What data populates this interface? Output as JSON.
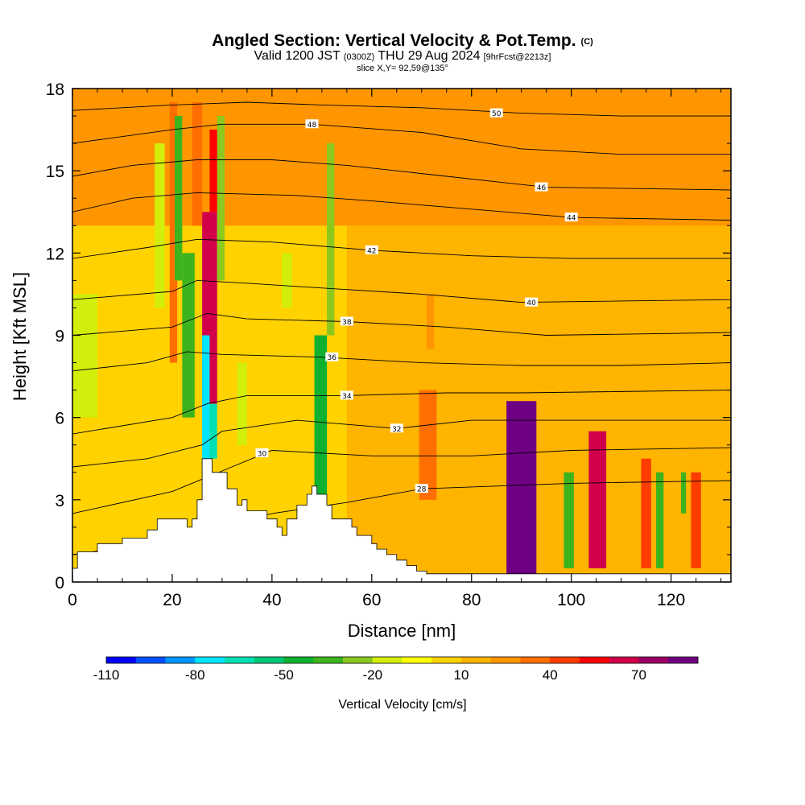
{
  "title": {
    "main": "Angled Section: Vertical Velocity & Pot.Temp.",
    "unit_tag": "(C)",
    "valid_a": "Valid 1200 JST",
    "valid_utc": "(0300Z)",
    "valid_b": "THU 29 Aug 2024",
    "forecast": "[9hrFcst@2213z]",
    "slice": "slice X,Y= 92,59@135°"
  },
  "chart_data": {
    "type": "heatmap",
    "xlabel": "Distance [nm]",
    "ylabel": "Height [Kft MSL]",
    "xlim": [
      0,
      132
    ],
    "ylim": [
      0,
      18
    ],
    "x_ticks": [
      0,
      20,
      40,
      60,
      80,
      100,
      120
    ],
    "y_ticks": [
      0,
      3,
      6,
      9,
      12,
      15,
      18
    ],
    "field": "Vertical Velocity",
    "colorbar": {
      "label": "Vertical Velocity [cm/s]",
      "tick_labels": [
        -110,
        -80,
        -50,
        -20,
        10,
        40,
        70
      ],
      "min": -110,
      "max": 90,
      "step": 10,
      "colors": [
        "#0000ff",
        "#0050ff",
        "#0095ff",
        "#00e5ff",
        "#00e0b4",
        "#00c878",
        "#10b030",
        "#3db41e",
        "#8cc81e",
        "#d2ee0a",
        "#ffff00",
        "#ffd200",
        "#ffb400",
        "#ff9600",
        "#ff6e00",
        "#ff3c00",
        "#ff0000",
        "#d2004b",
        "#9b0064",
        "#6e0082"
      ]
    },
    "background_value": 5,
    "cells": [
      {
        "x0": 87,
        "x1": 93,
        "y0": 0.3,
        "y1": 6.6,
        "v": 80
      },
      {
        "x0": 103.5,
        "x1": 107,
        "y0": 0.5,
        "y1": 5.5,
        "v": 60
      },
      {
        "x0": 26,
        "x1": 29,
        "y0": 6.5,
        "y1": 13.5,
        "v": 60
      },
      {
        "x0": 27.5,
        "x1": 29,
        "y0": 13.5,
        "y1": 16.5,
        "v": 50
      },
      {
        "x0": 24,
        "x1": 26,
        "y0": 13,
        "y1": 17.5,
        "v": 30
      },
      {
        "x0": 69.5,
        "x1": 73,
        "y0": 3,
        "y1": 7,
        "v": 30
      },
      {
        "x0": 71,
        "x1": 72.5,
        "y0": 8.5,
        "y1": 10.5,
        "v": 20
      },
      {
        "x0": 124,
        "x1": 126,
        "y0": 0.5,
        "y1": 4,
        "v": 40
      },
      {
        "x0": 114,
        "x1": 116,
        "y0": 0.5,
        "y1": 4.5,
        "v": 40
      },
      {
        "x0": 19.5,
        "x1": 21,
        "y0": 8,
        "y1": 17.5,
        "v": 30
      },
      {
        "x0": 22,
        "x1": 24.5,
        "y0": 6,
        "y1": 12,
        "v": -40
      },
      {
        "x0": 20.5,
        "x1": 22,
        "y0": 11,
        "y1": 17,
        "v": -40
      },
      {
        "x0": 16.5,
        "x1": 18.5,
        "y0": 10,
        "y1": 16,
        "v": -20
      },
      {
        "x0": 26,
        "x1": 27.5,
        "y0": 4,
        "y1": 9,
        "v": -80
      },
      {
        "x0": 27.5,
        "x1": 29,
        "y0": 4.5,
        "y1": 6.5,
        "v": -70
      },
      {
        "x0": 29,
        "x1": 30.5,
        "y0": 11,
        "y1": 17,
        "v": -30
      },
      {
        "x0": 48.5,
        "x1": 51,
        "y0": 3,
        "y1": 9,
        "v": -50
      },
      {
        "x0": 51,
        "x1": 52.5,
        "y0": 9,
        "y1": 16,
        "v": -30
      },
      {
        "x0": 0,
        "x1": 5,
        "y0": 6,
        "y1": 10.5,
        "v": -20
      },
      {
        "x0": 33,
        "x1": 35,
        "y0": 5,
        "y1": 8,
        "v": -20
      },
      {
        "x0": 42,
        "x1": 44,
        "y0": 10,
        "y1": 12,
        "v": -20
      },
      {
        "x0": 98.5,
        "x1": 100.5,
        "y0": 0.5,
        "y1": 4,
        "v": -40
      },
      {
        "x0": 117,
        "x1": 118.5,
        "y0": 0.5,
        "y1": 4,
        "v": -40
      },
      {
        "x0": 122,
        "x1": 123,
        "y0": 2.5,
        "y1": 4,
        "v": -40
      },
      {
        "x0": 0,
        "x1": 132,
        "y0": 13,
        "y1": 18,
        "v": 20
      },
      {
        "x0": 55,
        "x1": 132,
        "y0": 0.3,
        "y1": 13,
        "v": 15
      }
    ],
    "terrain": {
      "x": [
        0,
        1,
        1,
        5,
        5,
        10,
        10,
        15,
        15,
        17,
        17,
        23,
        23,
        24,
        24,
        25,
        25,
        26,
        26,
        28,
        28,
        31,
        31,
        33,
        33,
        34,
        34,
        35,
        35,
        39,
        39,
        41,
        41,
        42,
        42,
        43,
        43,
        45,
        45,
        47,
        47,
        48,
        48,
        49,
        49,
        51,
        51,
        52,
        52,
        56,
        56,
        57,
        57,
        60,
        60,
        61,
        61,
        63,
        63,
        65,
        65,
        67,
        67,
        69,
        69,
        71,
        71,
        132
      ],
      "y": [
        0.5,
        0.5,
        1.1,
        1.1,
        1.4,
        1.4,
        1.6,
        1.6,
        1.9,
        1.9,
        2.3,
        2.3,
        2.0,
        2.0,
        2.3,
        2.3,
        3.0,
        3.0,
        4.5,
        4.5,
        4.0,
        4.0,
        3.4,
        3.4,
        2.8,
        2.8,
        3.0,
        3.0,
        2.6,
        2.6,
        2.3,
        2.3,
        2.0,
        2.0,
        1.7,
        1.7,
        2.3,
        2.3,
        2.8,
        2.8,
        3.2,
        3.2,
        3.5,
        3.5,
        3.2,
        3.2,
        2.8,
        2.8,
        2.3,
        2.3,
        2.0,
        2.0,
        1.7,
        1.7,
        1.4,
        1.4,
        1.2,
        1.2,
        1.0,
        1.0,
        0.8,
        0.8,
        0.6,
        0.6,
        0.4,
        0.4,
        0.3,
        0.3
      ]
    },
    "contours": [
      {
        "label": "28",
        "pts": [
          [
            0,
            1.0
          ],
          [
            20,
            1.5
          ],
          [
            40,
            2.5
          ],
          [
            55,
            2.9
          ],
          [
            70,
            3.4
          ],
          [
            85,
            3.5
          ],
          [
            100,
            3.6
          ],
          [
            132,
            3.7
          ]
        ],
        "lx": 70,
        "ly": 3.4
      },
      {
        "label": "30",
        "pts": [
          [
            0,
            2.5
          ],
          [
            20,
            3.3
          ],
          [
            40,
            4.8
          ],
          [
            60,
            4.6
          ],
          [
            80,
            4.6
          ],
          [
            100,
            4.8
          ],
          [
            132,
            4.9
          ]
        ],
        "lx": 38,
        "ly": 4.7
      },
      {
        "label": "32",
        "pts": [
          [
            0,
            4.2
          ],
          [
            15,
            4.5
          ],
          [
            26,
            5.0
          ],
          [
            30,
            5.5
          ],
          [
            45,
            5.9
          ],
          [
            65,
            5.6
          ],
          [
            80,
            5.9
          ],
          [
            100,
            5.9
          ],
          [
            132,
            5.9
          ]
        ],
        "lx": 65,
        "ly": 5.6
      },
      {
        "label": "34",
        "pts": [
          [
            0,
            5.4
          ],
          [
            20,
            6.0
          ],
          [
            27,
            6.5
          ],
          [
            35,
            6.8
          ],
          [
            55,
            6.8
          ],
          [
            75,
            6.9
          ],
          [
            90,
            6.9
          ],
          [
            132,
            7.0
          ]
        ],
        "lx": 55,
        "ly": 6.8
      },
      {
        "label": "36",
        "pts": [
          [
            0,
            7.7
          ],
          [
            15,
            8.0
          ],
          [
            23,
            8.4
          ],
          [
            30,
            8.3
          ],
          [
            50,
            8.2
          ],
          [
            70,
            8.0
          ],
          [
            90,
            7.9
          ],
          [
            110,
            7.9
          ],
          [
            132,
            8.0
          ]
        ],
        "lx": 52,
        "ly": 8.2
      },
      {
        "label": "38",
        "pts": [
          [
            0,
            9.0
          ],
          [
            20,
            9.3
          ],
          [
            27,
            9.8
          ],
          [
            35,
            9.6
          ],
          [
            55,
            9.5
          ],
          [
            75,
            9.3
          ],
          [
            95,
            9.0
          ],
          [
            132,
            9.1
          ]
        ],
        "lx": 55,
        "ly": 9.5
      },
      {
        "label": "40",
        "pts": [
          [
            0,
            10.3
          ],
          [
            20,
            10.6
          ],
          [
            25,
            11.0
          ],
          [
            35,
            10.9
          ],
          [
            52,
            10.7
          ],
          [
            70,
            10.5
          ],
          [
            90,
            10.2
          ],
          [
            132,
            10.3
          ]
        ],
        "lx": 92,
        "ly": 10.2
      },
      {
        "label": "42",
        "pts": [
          [
            0,
            11.8
          ],
          [
            15,
            12.2
          ],
          [
            25,
            12.5
          ],
          [
            40,
            12.4
          ],
          [
            60,
            12.1
          ],
          [
            80,
            11.9
          ],
          [
            100,
            11.8
          ],
          [
            132,
            11.8
          ]
        ],
        "lx": 60,
        "ly": 12.1
      },
      {
        "label": "44",
        "pts": [
          [
            0,
            13.5
          ],
          [
            12,
            14.0
          ],
          [
            25,
            14.2
          ],
          [
            45,
            14.1
          ],
          [
            60,
            13.9
          ],
          [
            80,
            13.6
          ],
          [
            100,
            13.3
          ],
          [
            132,
            13.2
          ]
        ],
        "lx": 100,
        "ly": 13.3
      },
      {
        "label": "46",
        "pts": [
          [
            0,
            14.8
          ],
          [
            12,
            15.2
          ],
          [
            25,
            15.4
          ],
          [
            40,
            15.4
          ],
          [
            55,
            15.2
          ],
          [
            75,
            14.8
          ],
          [
            95,
            14.4
          ],
          [
            132,
            14.3
          ]
        ],
        "lx": 94,
        "ly": 14.4
      },
      {
        "label": "48",
        "pts": [
          [
            0,
            16.0
          ],
          [
            20,
            16.5
          ],
          [
            30,
            16.7
          ],
          [
            48,
            16.7
          ],
          [
            70,
            16.4
          ],
          [
            90,
            15.8
          ],
          [
            110,
            15.6
          ],
          [
            132,
            15.6
          ]
        ],
        "lx": 48,
        "ly": 16.7
      },
      {
        "label": "50",
        "pts": [
          [
            0,
            17.2
          ],
          [
            20,
            17.4
          ],
          [
            35,
            17.5
          ],
          [
            50,
            17.4
          ],
          [
            70,
            17.3
          ],
          [
            90,
            17.1
          ],
          [
            110,
            17.0
          ],
          [
            132,
            17.0
          ]
        ],
        "lx": 85,
        "ly": 17.1
      }
    ]
  }
}
